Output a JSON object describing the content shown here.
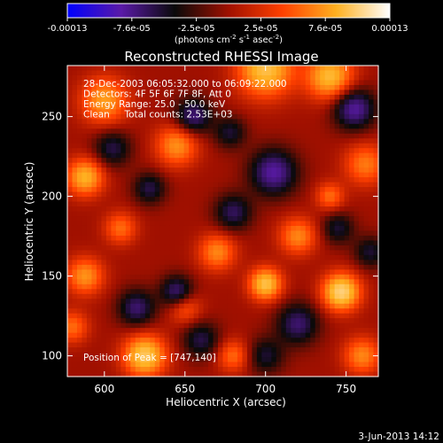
{
  "chart_data": {
    "type": "heatmap",
    "title": "Reconstructed RHESSI Image",
    "xlabel": "Heliocentric X (arcsec)",
    "ylabel": "Heliocentric Y (arcsec)",
    "xlim": [
      577,
      770
    ],
    "ylim": [
      87,
      282
    ],
    "xticks": [
      600,
      650,
      700,
      750
    ],
    "yticks": [
      100,
      150,
      200,
      250
    ],
    "grid": false,
    "colorbar": {
      "position": "top",
      "min": -0.00013,
      "max": 0.00013,
      "tick_labels": [
        "-0.00013",
        "-7.6e-05",
        "-2.5e-05",
        "2.5e-05",
        "7.6e-05",
        "0.00013"
      ],
      "unit_prefix": "(photons cm",
      "unit_exp1": "-2",
      "unit_mid": " s",
      "unit_exp2": "-1",
      "unit_mid2": " asec",
      "unit_exp3": "-2",
      "unit_suffix": ")",
      "colormap": [
        "#0000ff",
        "#5a1aa8",
        "#0a0a0a",
        "#a01000",
        "#ff4000",
        "#ffb020",
        "#ffffff"
      ]
    },
    "annotations": [
      "28-Dec-2003 06:05:32.000 to 06:09:22.000",
      "Detectors: 4F 5F 6F 7F 8F, Att 0",
      "Energy Range: 25.0 - 50.0 keV",
      "Clean     Total counts: 2.53E+03"
    ],
    "peak_label": "Position of Peak = [747,140]",
    "peak_position": [
      747,
      140
    ],
    "blobs": [
      {
        "x": 747,
        "y": 140,
        "amp": 1.0,
        "sigma": 8
      },
      {
        "x": 700,
        "y": 145,
        "amp": 0.85,
        "sigma": 7
      },
      {
        "x": 625,
        "y": 100,
        "amp": 0.9,
        "sigma": 9
      },
      {
        "x": 588,
        "y": 212,
        "amp": 0.75,
        "sigma": 8
      },
      {
        "x": 700,
        "y": 280,
        "amp": 0.85,
        "sigma": 12
      },
      {
        "x": 740,
        "y": 275,
        "amp": 0.8,
        "sigma": 10
      },
      {
        "x": 600,
        "y": 260,
        "amp": 0.65,
        "sigma": 10
      },
      {
        "x": 645,
        "y": 232,
        "amp": 0.6,
        "sigma": 9
      },
      {
        "x": 670,
        "y": 165,
        "amp": 0.55,
        "sigma": 8
      },
      {
        "x": 588,
        "y": 150,
        "amp": 0.6,
        "sigma": 8
      },
      {
        "x": 720,
        "y": 175,
        "amp": 0.55,
        "sigma": 8
      },
      {
        "x": 760,
        "y": 100,
        "amp": 0.55,
        "sigma": 8
      },
      {
        "x": 680,
        "y": 100,
        "amp": 0.45,
        "sigma": 7
      },
      {
        "x": 762,
        "y": 220,
        "amp": 0.5,
        "sigma": 9
      },
      {
        "x": 740,
        "y": 200,
        "amp": 0.45,
        "sigma": 6
      },
      {
        "x": 610,
        "y": 180,
        "amp": 0.45,
        "sigma": 7
      },
      {
        "x": 650,
        "y": 130,
        "amp": 0.4,
        "sigma": 7
      },
      {
        "x": 580,
        "y": 118,
        "amp": 0.45,
        "sigma": 7
      },
      {
        "x": 705,
        "y": 215,
        "amp": -0.7,
        "sigma": 10
      },
      {
        "x": 755,
        "y": 255,
        "amp": -0.7,
        "sigma": 9
      },
      {
        "x": 655,
        "y": 250,
        "amp": -0.6,
        "sigma": 8
      },
      {
        "x": 620,
        "y": 130,
        "amp": -0.55,
        "sigma": 8
      },
      {
        "x": 645,
        "y": 140,
        "amp": -0.6,
        "sigma": 7
      },
      {
        "x": 720,
        "y": 120,
        "amp": -0.55,
        "sigma": 9
      },
      {
        "x": 680,
        "y": 190,
        "amp": -0.5,
        "sigma": 8
      },
      {
        "x": 745,
        "y": 180,
        "amp": -0.4,
        "sigma": 7
      },
      {
        "x": 660,
        "y": 110,
        "amp": -0.45,
        "sigma": 8
      },
      {
        "x": 605,
        "y": 230,
        "amp": -0.45,
        "sigma": 8
      },
      {
        "x": 628,
        "y": 205,
        "amp": -0.45,
        "sigma": 7
      },
      {
        "x": 700,
        "y": 100,
        "amp": -0.4,
        "sigma": 8
      },
      {
        "x": 765,
        "y": 165,
        "amp": -0.4,
        "sigma": 7
      },
      {
        "x": 678,
        "y": 240,
        "amp": -0.4,
        "sigma": 7
      }
    ]
  },
  "footer": {
    "date": "3-Jun-2013 14:12"
  }
}
